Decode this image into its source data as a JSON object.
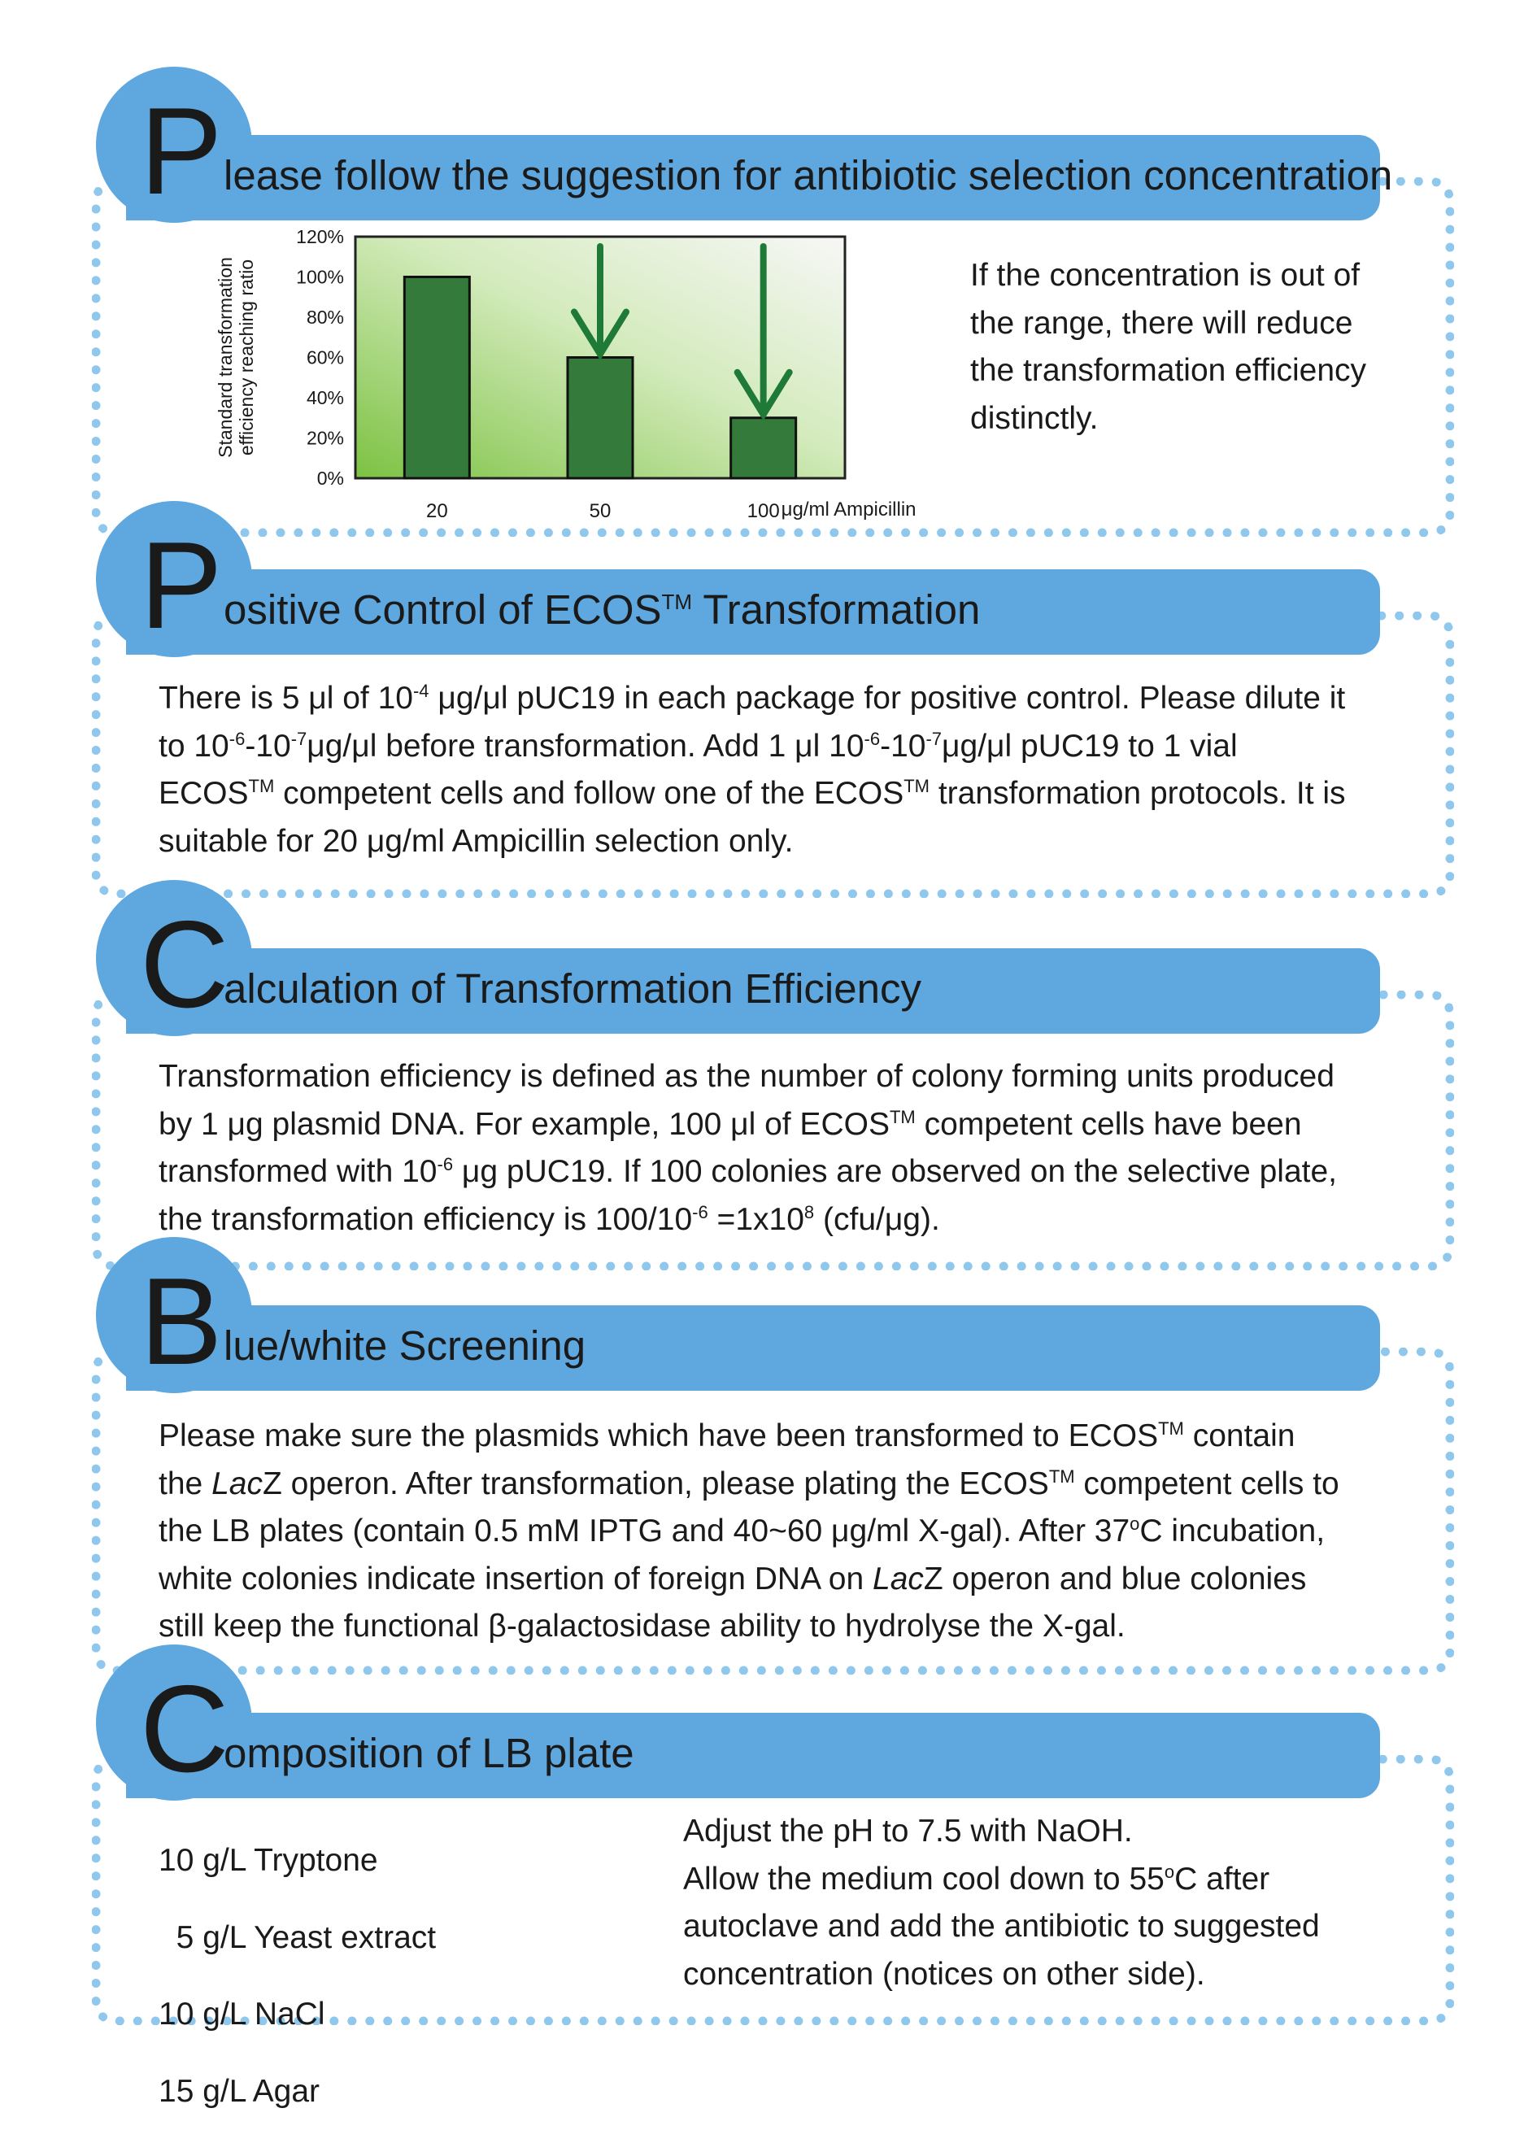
{
  "sections": [
    {
      "letter": "P",
      "title_rest": "lease follow the suggestion for antibiotic selection concentration"
    },
    {
      "letter": "P",
      "title_rest": "ositive Control of ECOS",
      "title_tm": "TM",
      "title_end": " Transformation"
    },
    {
      "letter": "C",
      "title_rest": "alculation of Transformation Efficiency"
    },
    {
      "letter": "B",
      "title_rest": "lue/white Screening"
    },
    {
      "letter": "C",
      "title_rest": "omposition of LB plate"
    }
  ],
  "s1": {
    "note_lines": [
      "If the concentration is out of",
      "the range, there will reduce",
      "the transformation efficiency",
      "distinctly."
    ]
  },
  "chart_data": {
    "type": "bar",
    "categories": [
      "20",
      "50",
      "100"
    ],
    "values": [
      100,
      60,
      30
    ],
    "ylabel_lines": [
      "Standard transformation",
      "efficiency reaching ratio"
    ],
    "xlabel": "μg/ml Ampicillin",
    "ylim": [
      0,
      120
    ],
    "yticks": [
      "0%",
      "20%",
      "40%",
      "60%",
      "80%",
      "100%",
      "120%"
    ],
    "arrows_on": [
      "50",
      "100"
    ],
    "bar_color": "#347a3a",
    "arrow_color": "#1e7a36"
  },
  "s2": {
    "l1a": "There is 5 μl of 10",
    "l1sup": "-4",
    "l1b": " μg/μl pUC19 in each package for positive control. Please dilute it",
    "l2a": "to 10",
    "l2sup1": "-6",
    "l2b": "-10",
    "l2sup2": "-7",
    "l2c": "μg/μl before transformation. Add 1 μl 10",
    "l2sup3": "-6",
    "l2d": "-10",
    "l2sup4": "-7",
    "l2e": "μg/μl pUC19 to 1 vial",
    "l3a": "ECOS",
    "l3sup1": "TM",
    "l3b": " competent cells and follow one of the ECOS",
    "l3sup2": "TM",
    "l3c": " transformation protocols. It is",
    "l4": "suitable for 20 μg/ml Ampicillin selection only."
  },
  "s3": {
    "l1": "Transformation efficiency is defined as the number of colony forming units produced",
    "l2a": "by 1 μg plasmid DNA. For example, 100 μl of ECOS",
    "l2sup": "TM",
    "l2b": " competent cells have been",
    "l3a": "transformed with 10",
    "l3sup": "-6",
    "l3b": " μg pUC19. If 100 colonies are observed on the selective plate,",
    "l4a": "the transformation efficiency is 100/10",
    "l4sup1": "-6",
    "l4b": " =1x10",
    "l4sup2": "8",
    "l4c": " (cfu/μg)."
  },
  "s4": {
    "l1a": "Please make sure the plasmids which have been transformed to ECOS",
    "l1sup": "TM",
    "l1b": " contain",
    "l2a": "the ",
    "l2i": "Lac",
    "l2b": "Z operon. After transformation, please plating the ECOS",
    "l2sup": "TM",
    "l2c": " competent cells to",
    "l3a": "the LB plates (contain 0.5 mM IPTG and 40~60 μg/ml X-gal). After 37",
    "l3sup": "o",
    "l3b": "C incubation,",
    "l4a": "white colonies indicate insertion of foreign DNA on ",
    "l4i": "Lac",
    "l4b": "Z operon and blue colonies",
    "l5": "still keep the functional β-galactosidase ability to hydrolyse the X-gal."
  },
  "s5": {
    "ingredients": [
      "10 g/L Tryptone",
      "  5 g/L Yeast extract",
      "10 g/L NaCl",
      "15 g/L Agar"
    ],
    "r1": "Adjust the pH to 7.5 with NaOH.",
    "r2a": "Allow the medium cool down to 55",
    "r2sup": "o",
    "r2b": "C after",
    "r3": "autoclave and add the antibiotic to suggested",
    "r4": "concentration (notices on other side)."
  }
}
